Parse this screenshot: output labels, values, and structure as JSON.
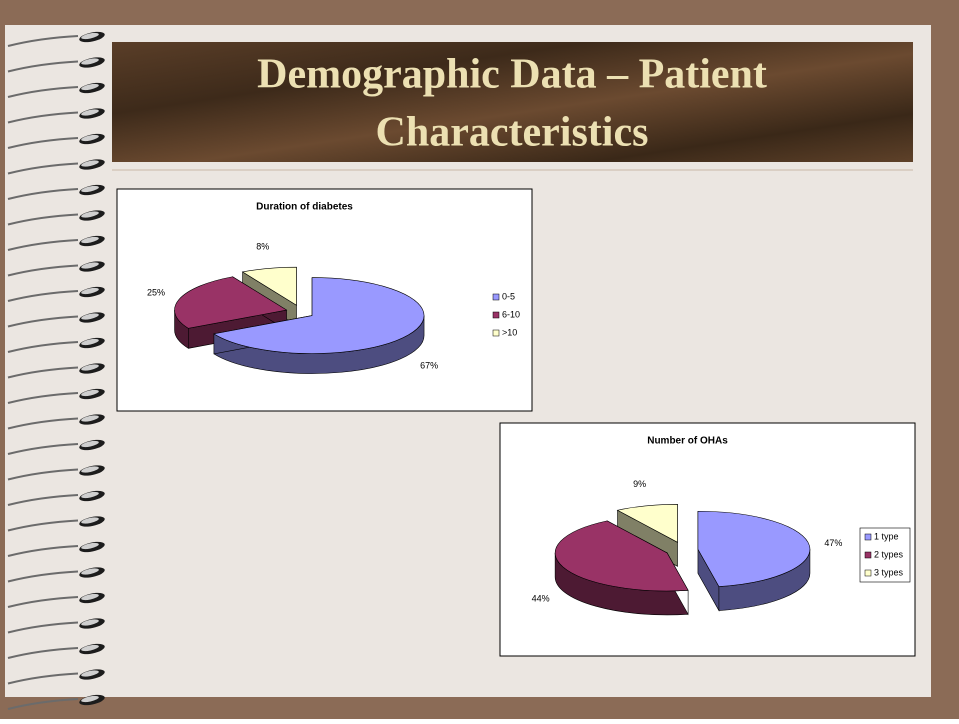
{
  "slide": {
    "title_lines": [
      "Demographic Data – Patient",
      "Characteristics"
    ]
  },
  "chart_data": [
    {
      "type": "pie",
      "title": "Duration of diabetes",
      "categories": [
        "0-5",
        "6-10",
        ">10"
      ],
      "values": [
        67,
        25,
        8
      ],
      "value_labels": [
        "67%",
        "25%",
        "8%"
      ],
      "colors": [
        "#9999ff",
        "#993366",
        "#ffffcc"
      ]
    },
    {
      "type": "pie",
      "title": "Number of OHAs",
      "categories": [
        "1 type",
        "2 types",
        "3 types"
      ],
      "values": [
        47,
        44,
        9
      ],
      "value_labels": [
        "47%",
        "44%",
        "9%"
      ],
      "colors": [
        "#9999ff",
        "#993366",
        "#ffffcc"
      ]
    }
  ]
}
